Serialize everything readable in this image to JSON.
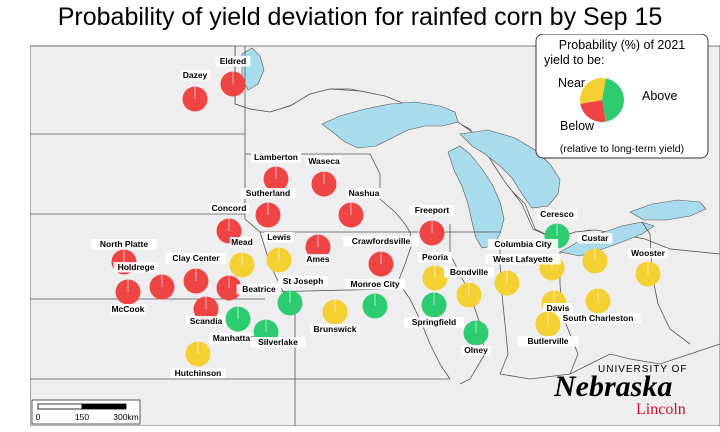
{
  "title": "Probability of yield deviation for rainfed corn by Sep 15",
  "colors": {
    "below": "#ef4444",
    "near": "#f5d033",
    "above": "#2ecc71",
    "land": "#eeeeee",
    "water": "#a8dcec",
    "border": "#555555",
    "logo_red": "#c8102e"
  },
  "legend": {
    "title_line1": "Probability (%) of 2021",
    "title_line2": "yield to be:",
    "near": "Near",
    "above": "Above",
    "below": "Below",
    "note": "(relative to long-term yield)"
  },
  "scalebar": {
    "ticks": [
      "0",
      "150",
      "300km"
    ]
  },
  "logo": {
    "university_of": "UNIVERSITY OF",
    "name": "Nebraska",
    "campus": "Lincoln"
  },
  "sites": [
    {
      "name": "Dazey",
      "category": "below"
    },
    {
      "name": "Eldred",
      "category": "below"
    },
    {
      "name": "Lamberton",
      "category": "below"
    },
    {
      "name": "Waseca",
      "category": "below"
    },
    {
      "name": "Sutherland",
      "category": "below"
    },
    {
      "name": "Nashua",
      "category": "below"
    },
    {
      "name": "Concord",
      "category": "below"
    },
    {
      "name": "Freeport",
      "category": "below"
    },
    {
      "name": "Ceresco",
      "category": "above"
    },
    {
      "name": "Mead",
      "category": "near"
    },
    {
      "name": "Lewis",
      "category": "near"
    },
    {
      "name": "Ames",
      "category": "below"
    },
    {
      "name": "Crawfordsville",
      "category": "below"
    },
    {
      "name": "North Platte",
      "category": "below"
    },
    {
      "name": "Clay Center",
      "category": "below"
    },
    {
      "name": "Holdrege",
      "category": "below"
    },
    {
      "name": "McCook",
      "category": "below"
    },
    {
      "name": "Beatrice",
      "category": "below"
    },
    {
      "name": "St Joseph",
      "category": "above"
    },
    {
      "name": "Scandia",
      "category": "below"
    },
    {
      "name": "Manhattan",
      "category": "above"
    },
    {
      "name": "Silverlake",
      "category": "above"
    },
    {
      "name": "Brunswick",
      "category": "near"
    },
    {
      "name": "Monroe City",
      "category": "above"
    },
    {
      "name": "Hutchinson",
      "category": "near"
    },
    {
      "name": "Peoria",
      "category": "near"
    },
    {
      "name": "Bondville",
      "category": "near"
    },
    {
      "name": "Springfield",
      "category": "above"
    },
    {
      "name": "Olney",
      "category": "above"
    },
    {
      "name": "Columbia City",
      "category": "near"
    },
    {
      "name": "West Lafayette",
      "category": "near"
    },
    {
      "name": "Custar",
      "category": "near"
    },
    {
      "name": "Wooster",
      "category": "near"
    },
    {
      "name": "Davis",
      "category": "near"
    },
    {
      "name": "South Charleston",
      "category": "near"
    },
    {
      "name": "Butlerville",
      "category": "near"
    }
  ]
}
